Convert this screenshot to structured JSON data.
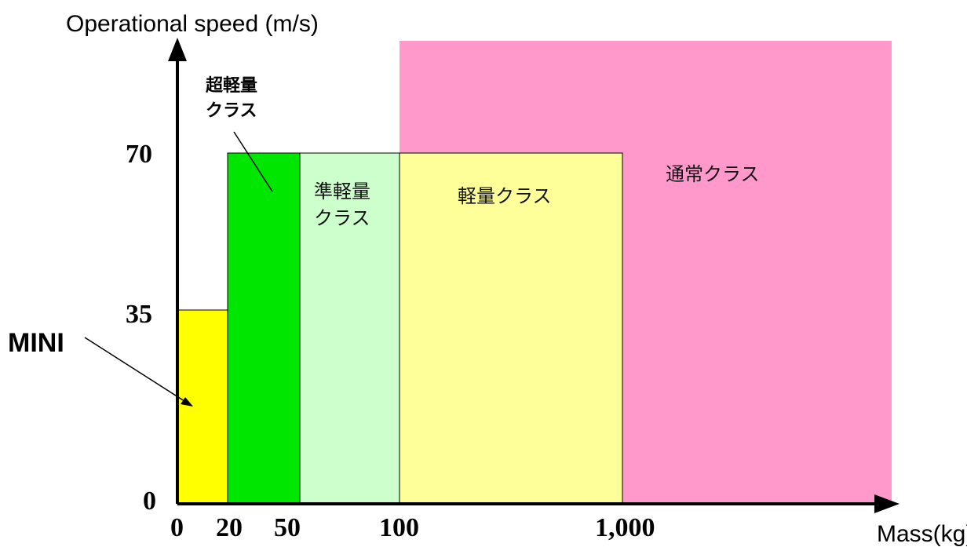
{
  "chart_data": {
    "type": "diagram",
    "y_axis_title": "Operational speed (m/s)",
    "x_axis_title": "Mass(kg)",
    "x_ticks": [
      "0",
      "20",
      "50",
      "100",
      "1,000"
    ],
    "y_ticks": [
      "0",
      "35",
      "70"
    ],
    "regions": [
      {
        "label": "MINI",
        "mass_from": "0",
        "mass_to": "20",
        "speed_max": 35,
        "color": "#ffff00"
      },
      {
        "label": "超軽量クラス",
        "mass_from": "20",
        "mass_to": "50",
        "speed_max": 70,
        "color": "#00e600"
      },
      {
        "label": "準軽量クラス",
        "mass_from": "50",
        "mass_to": "100",
        "speed_max": 70,
        "color": "#ccffcc"
      },
      {
        "label": "軽量クラス",
        "mass_from": "100",
        "mass_to": "1,000",
        "speed_max": 70,
        "color": "#ffff99"
      },
      {
        "label": "通常クラス",
        "mass_from": "100",
        "mass_to": "",
        "speed_max": null,
        "color": "#ff99cc"
      }
    ],
    "labels": {
      "mini": "MINI",
      "ultra_light_line1": "超軽量",
      "ultra_light_line2": "クラス",
      "semi_light_line1": "準軽量",
      "semi_light_line2": "クラス",
      "light": "軽量クラス",
      "normal": "通常クラス"
    }
  }
}
